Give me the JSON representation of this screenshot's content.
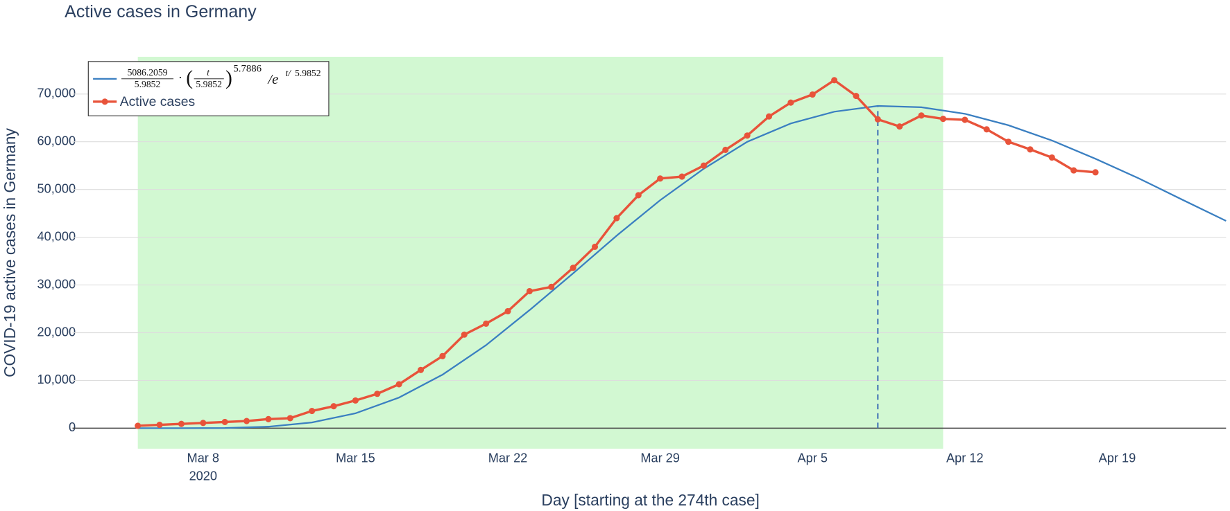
{
  "chart_data": {
    "type": "line",
    "title": "Active cases in Germany",
    "xlabel": "Day [starting at the 274th case]",
    "ylabel": "COVID-19 active cases in Germany",
    "xlim": [
      "2020-03-02",
      "2020-04-24"
    ],
    "xticks": [
      {
        "value": "2020-03-08",
        "label": "Mar 8"
      },
      {
        "value": "2020-03-15",
        "label": "Mar 15"
      },
      {
        "value": "2020-03-22",
        "label": "Mar 22"
      },
      {
        "value": "2020-03-29",
        "label": "Mar 29"
      },
      {
        "value": "2020-04-05",
        "label": "Apr 5"
      },
      {
        "value": "2020-04-12",
        "label": "Apr 12"
      },
      {
        "value": "2020-04-19",
        "label": "Apr 19"
      }
    ],
    "xtick_year": "2020",
    "ylim": [
      -4300,
      77800
    ],
    "yticks": [
      0,
      {
        "value": 10000,
        "label": "10,000"
      },
      {
        "value": 20000,
        "label": "20,000"
      },
      {
        "value": 30000,
        "label": "30,000"
      },
      {
        "value": 40000,
        "label": "40,000"
      },
      {
        "value": 50000,
        "label": "50,000"
      },
      {
        "value": 60000,
        "label": "60,000"
      },
      {
        "value": 70000,
        "label": "70,000"
      }
    ],
    "grid": true,
    "legend_position": "top-left",
    "shaded_region": {
      "x0": "2020-03-05",
      "x1": "2020-04-11",
      "color": "#d2f8d2"
    },
    "peak_line": {
      "x": "2020-04-08",
      "y": 67500,
      "color": "#3f6fb5"
    },
    "series": [
      {
        "formula": {
          "numerator": "5086.2059",
          "denominator": "5.9852",
          "exponent": "5.7886",
          "divisor": "5.9852"
        },
        "color": "#3a7fc1",
        "markers": false,
        "x": [
          "2020-03-05",
          "2020-03-07",
          "2020-03-09",
          "2020-03-11",
          "2020-03-13",
          "2020-03-15",
          "2020-03-17",
          "2020-03-19",
          "2020-03-21",
          "2020-03-23",
          "2020-03-25",
          "2020-03-27",
          "2020-03-29",
          "2020-03-31",
          "2020-04-02",
          "2020-04-04",
          "2020-04-06",
          "2020-04-08",
          "2020-04-10",
          "2020-04-12",
          "2020-04-14",
          "2020-04-16",
          "2020-04-18",
          "2020-04-20",
          "2020-04-22",
          "2020-04-24"
        ],
        "values": [
          0,
          1,
          42,
          316,
          1196,
          3115,
          6415,
          11210,
          17390,
          24740,
          32440,
          40330,
          47760,
          54340,
          59990,
          63830,
          66300,
          67500,
          67240,
          65860,
          63460,
          60270,
          56430,
          52310,
          47840,
          43430
        ]
      },
      {
        "name": "Active cases",
        "color": "#e8533a",
        "markers": true,
        "x": [
          "2020-03-05",
          "2020-03-06",
          "2020-03-07",
          "2020-03-08",
          "2020-03-09",
          "2020-03-10",
          "2020-03-11",
          "2020-03-12",
          "2020-03-13",
          "2020-03-14",
          "2020-03-15",
          "2020-03-16",
          "2020-03-17",
          "2020-03-18",
          "2020-03-19",
          "2020-03-20",
          "2020-03-21",
          "2020-03-22",
          "2020-03-23",
          "2020-03-24",
          "2020-03-25",
          "2020-03-26",
          "2020-03-27",
          "2020-03-28",
          "2020-03-29",
          "2020-03-30",
          "2020-03-31",
          "2020-04-01",
          "2020-04-02",
          "2020-04-03",
          "2020-04-04",
          "2020-04-05",
          "2020-04-06",
          "2020-04-07",
          "2020-04-08",
          "2020-04-09",
          "2020-04-10",
          "2020-04-11",
          "2020-04-12",
          "2020-04-13",
          "2020-04-14",
          "2020-04-15",
          "2020-04-16",
          "2020-04-17",
          "2020-04-18"
        ],
        "values": [
          500,
          700,
          900,
          1100,
          1300,
          1500,
          1900,
          2100,
          3600,
          4600,
          5800,
          7200,
          9200,
          12200,
          15100,
          19600,
          21900,
          24500,
          28700,
          29600,
          33600,
          38000,
          44000,
          48800,
          52300,
          52700,
          55000,
          58300,
          61300,
          65300,
          68200,
          69900,
          72900,
          69600,
          64700,
          63200,
          65500,
          64800,
          64600,
          62600,
          60000,
          58400,
          56700,
          54000,
          53600
        ]
      }
    ]
  }
}
